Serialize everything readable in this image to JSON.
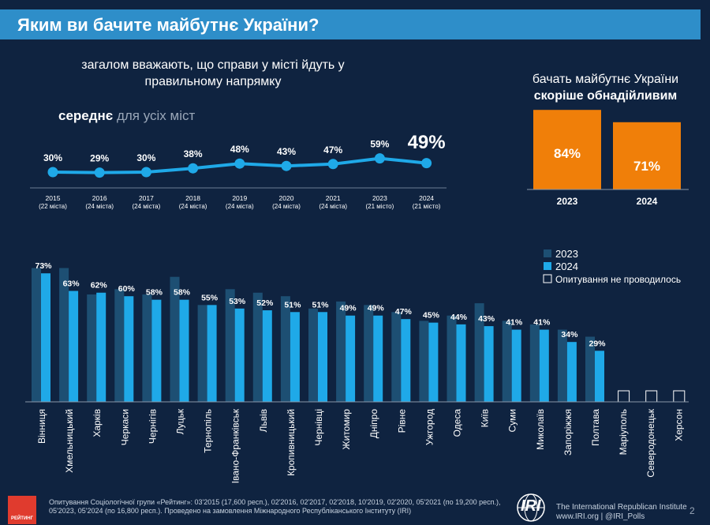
{
  "header": {
    "title": "Яким ви бачите майбутнє України?"
  },
  "trend": {
    "title_line1": "загалом вважають, що справи у місті йдуть у",
    "title_line2": "правильному напрямку",
    "avg_bold": "середнє",
    "avg_rest": "для усіх міст"
  },
  "optimism": {
    "title_line1": "бачать майбутнє України",
    "title_line2": "скоріше обнадійливим"
  },
  "chart_data": [
    {
      "type": "line",
      "title": "загалом вважають, що справи у місті йдуть у правильному напрямку — середнє для усіх міст",
      "x": [
        "2015",
        "2016",
        "2017",
        "2018",
        "2019",
        "2020",
        "2021",
        "2023",
        "2024"
      ],
      "x_sublabels": [
        "(22 міста)",
        "(24 міста)",
        "(24 міста)",
        "(24 міста)",
        "(24 міста)",
        "(24 міста)",
        "(24 міста)",
        "(21 місто)",
        "(21 місто)"
      ],
      "values": [
        30,
        29,
        30,
        38,
        48,
        43,
        47,
        59,
        49
      ],
      "labels": [
        "30%",
        "29%",
        "30%",
        "38%",
        "48%",
        "43%",
        "47%",
        "59%",
        "49%"
      ],
      "color": "#1fa9e8"
    },
    {
      "type": "bar",
      "title": "бачать майбутнє України скоріше обнадійливим",
      "categories": [
        "2023",
        "2024"
      ],
      "values": [
        84,
        71
      ],
      "labels": [
        "84%",
        "71%"
      ],
      "color": "#f07f09"
    },
    {
      "type": "bar",
      "categories": [
        "Вінниця",
        "Хмельницький",
        "Харків",
        "Черкаси",
        "Чернігів",
        "Луцьк",
        "Тернопіль",
        "Івано-Франківськ",
        "Львів",
        "Кропивницький",
        "Чернівці",
        "Житомир",
        "Дніпро",
        "Рівне",
        "Ужгород",
        "Одеса",
        "Київ",
        "Суми",
        "Миколаїв",
        "Запоріжжя",
        "Полтава",
        "Маріуполь",
        "Северодонецьк",
        "Херсон"
      ],
      "series": [
        {
          "name": "2023",
          "values": [
            76,
            76,
            61,
            64,
            61,
            71,
            55,
            64,
            62,
            60,
            53,
            57,
            55,
            51,
            46,
            49,
            56,
            46,
            44,
            41,
            37,
            null,
            null,
            null
          ],
          "color": "#1d4f73"
        },
        {
          "name": "2024",
          "values": [
            73,
            63,
            62,
            60,
            58,
            58,
            55,
            53,
            52,
            51,
            51,
            49,
            49,
            47,
            45,
            44,
            43,
            41,
            41,
            34,
            29,
            null,
            null,
            null
          ],
          "color": "#1fa9e8"
        }
      ],
      "labels_2024": [
        "73%",
        "63%",
        "62%",
        "60%",
        "58%",
        "58%",
        "55%",
        "53%",
        "52%",
        "51%",
        "51%",
        "49%",
        "49%",
        "47%",
        "45%",
        "44%",
        "43%",
        "41%",
        "41%",
        "34%",
        "29%",
        "",
        "",
        ""
      ],
      "legend": [
        {
          "name": "2023",
          "color": "#1d4f73"
        },
        {
          "name": "2024",
          "color": "#1fa9e8"
        },
        {
          "name": "Опитування не проводилось",
          "color": "#0f2340"
        }
      ],
      "ylim": [
        0,
        80
      ]
    }
  ],
  "footer": {
    "note": "Опитування Соціологічної групи «Рейтинг»: 03'2015 (17,600 респ.), 02'2016, 02'2017, 02'2018, 10'2019, 02'2020, 05'2021 (по 19,200 респ.), 05'2023, 05'2024 (по 16,800 респ.). Проведено на замовлення Міжнародного Республіканського Інституту (IRI)",
    "logo_text": "РЕЙТИНГ",
    "iri_mark": "IRI",
    "iri_name": "The International Republican Institute",
    "iri_url": "www.IRI.org | @IRI_Polls",
    "page": "2"
  }
}
